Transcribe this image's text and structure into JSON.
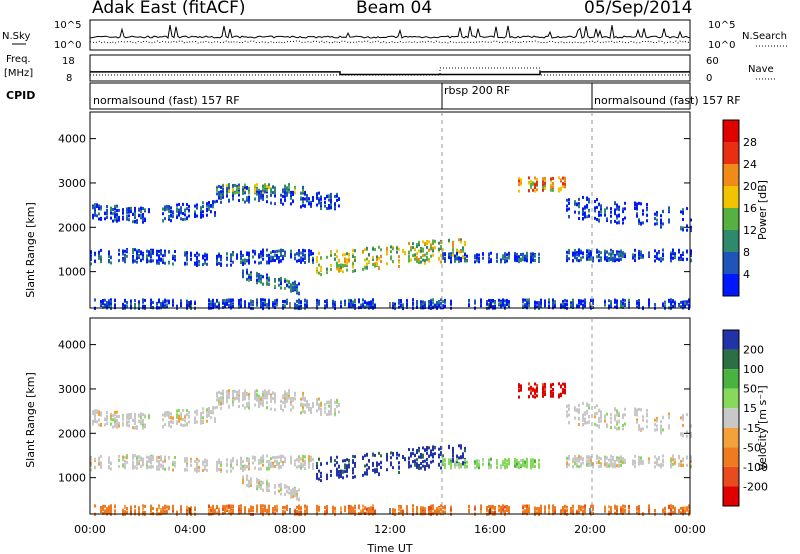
{
  "header": {
    "station": "Adak East (fitACF)",
    "beam": "Beam 04",
    "date": "05/Sep/2014"
  },
  "nsky_panel": {
    "left_label": "N.Sky",
    "right_label": "N.Search",
    "left_ticks": [
      "10^5",
      "10^0"
    ],
    "right_ticks": [
      "10^5",
      "10^0"
    ]
  },
  "freq_panel": {
    "left_label_top": "Freq.",
    "left_label_bottom": "[MHz]",
    "right_label": "Nave",
    "left_ticks": [
      "18",
      "8"
    ],
    "right_ticks": [
      "60",
      "0"
    ]
  },
  "cpid": {
    "label": "CPID",
    "segments": [
      {
        "text": "normalsound (fast) 157 RF",
        "start_hour": 0
      },
      {
        "text": "rbsp 200 RF",
        "start_hour": 14
      },
      {
        "text": "normalsound (fast) 157 RF",
        "start_hour": 20
      }
    ]
  },
  "axes": {
    "time_label": "Time UT",
    "time_ticks": [
      "00:00",
      "04:00",
      "08:00",
      "12:00",
      "16:00",
      "20:00",
      "00:00"
    ],
    "range_label": "Slant Range [km]",
    "range_ticks": [
      "1000",
      "2000",
      "3000",
      "4000"
    ]
  },
  "power_scale": {
    "label": "Power [dB]",
    "ticks": [
      "4",
      "8",
      "12",
      "16",
      "20",
      "24",
      "28"
    ],
    "colors": [
      "#0018ff",
      "#1f54b8",
      "#2e8a6a",
      "#56b042",
      "#f2c400",
      "#f08a18",
      "#e83010",
      "#e00000"
    ]
  },
  "velocity_scale": {
    "label": "Velocity [m s⁻¹]",
    "ticks": [
      "200",
      "100",
      "50",
      "15",
      "-15",
      "-50",
      "-100",
      "-200"
    ],
    "colors": [
      "#2233aa",
      "#2c6f44",
      "#49b342",
      "#86d95a",
      "#c8c8c8",
      "#f3a23b",
      "#f07a20",
      "#e94a1e",
      "#e00000"
    ]
  },
  "chart_data": [
    {
      "type": "line",
      "name": "N.Sky",
      "x_range": [
        0,
        24
      ],
      "description_values": "noise ~10^2 baseline with spikes"
    },
    {
      "type": "line",
      "name": "Freq",
      "x": [
        0,
        10,
        10,
        18,
        18,
        24
      ],
      "y": [
        11.5,
        11.5,
        10.5,
        10.5,
        11.5,
        11.5
      ],
      "ylim": [
        8,
        18
      ]
    },
    {
      "type": "heatmap",
      "name": "Power",
      "xlim": [
        0,
        24
      ],
      "ylim": [
        180,
        4600
      ],
      "clim": [
        0,
        30
      ]
    },
    {
      "type": "heatmap",
      "name": "Velocity",
      "xlim": [
        0,
        24
      ],
      "ylim": [
        180,
        4600
      ],
      "clim": [
        -200,
        200
      ]
    }
  ]
}
